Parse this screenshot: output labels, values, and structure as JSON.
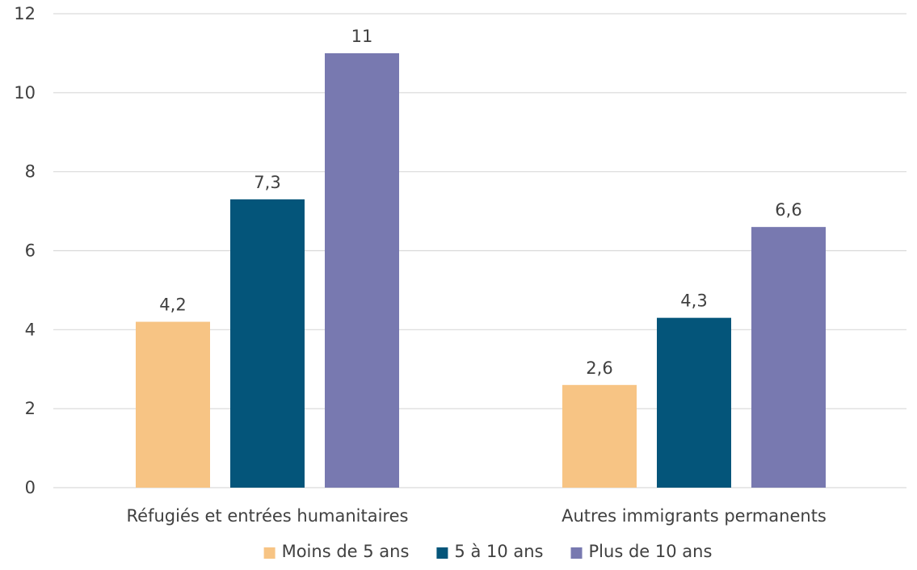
{
  "chart_data": {
    "type": "bar",
    "title": "",
    "xlabel": "",
    "ylabel": "",
    "categories": [
      "Réfugiés et entrées humanitaires",
      "Autres immigrants permanents"
    ],
    "series": [
      {
        "name": "Moins de 5 ans",
        "values": [
          4.2,
          2.6
        ],
        "labels": [
          "4,2",
          "2,6"
        ],
        "color": "#f7c484"
      },
      {
        "name": "5 à 10 ans",
        "values": [
          7.3,
          4.3
        ],
        "labels": [
          "7,3",
          "4,3"
        ],
        "color": "#04557a"
      },
      {
        "name": "Plus de 10 ans",
        "values": [
          11,
          6.6
        ],
        "labels": [
          "11",
          "6,6"
        ],
        "color": "#7879b0"
      }
    ],
    "ylim": [
      0,
      12
    ],
    "yticks": [
      0,
      2,
      4,
      6,
      8,
      10,
      12
    ],
    "grid": true,
    "legend_position": "bottom",
    "text_color": "#404040",
    "grid_color": "#d9d9d9"
  }
}
